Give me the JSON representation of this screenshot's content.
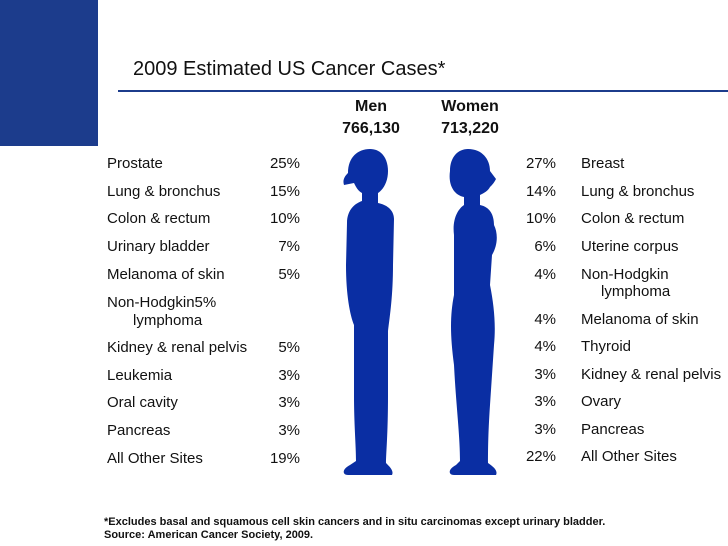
{
  "title": "2009 Estimated US Cancer Cases*",
  "colors": {
    "accent": "#1c3c8c",
    "figure": "#0a2ea3"
  },
  "men": {
    "label": "Men",
    "total": "766,130",
    "rows": [
      {
        "site": "Prostate",
        "pct": "25%"
      },
      {
        "site": "Lung & bronchus",
        "pct": "15%"
      },
      {
        "site": "Colon & rectum",
        "pct": "10%"
      },
      {
        "site": "Urinary bladder",
        "pct": "7%"
      },
      {
        "site": "Melanoma of skin",
        "pct": "5%"
      },
      {
        "site": "Non-Hodgkin5%",
        "site_line2": "lymphoma"
      },
      {
        "site": "Kidney & renal pelvis",
        "pct": "5%"
      },
      {
        "site": "Leukemia",
        "pct": "3%"
      },
      {
        "site": "Oral cavity",
        "pct": "3%"
      },
      {
        "site": "Pancreas",
        "pct": "3%"
      },
      {
        "site": "All Other Sites",
        "pct": "19%"
      }
    ]
  },
  "women": {
    "label": "Women",
    "total": "713,220",
    "rows": [
      {
        "pct": "27%",
        "site": "Breast"
      },
      {
        "pct": "14%",
        "site": "Lung & bronchus"
      },
      {
        "pct": "10%",
        "site": "Colon & rectum"
      },
      {
        "pct": "6%",
        "site": "Uterine corpus"
      },
      {
        "pct": "4%",
        "site": "Non-Hodgkin",
        "site_line2": "lymphoma"
      },
      {
        "pct": "4%",
        "site": "Melanoma of skin"
      },
      {
        "pct": "4%",
        "site": "Thyroid"
      },
      {
        "pct": "3%",
        "site": "Kidney & renal pelvis"
      },
      {
        "pct": "3%",
        "site": "Ovary"
      },
      {
        "pct": "3%",
        "site": "Pancreas"
      },
      {
        "pct": "22%",
        "site": "All Other Sites"
      }
    ]
  },
  "footnote": {
    "line1": "*Excludes basal and squamous cell skin cancers and in situ carcinomas except urinary bladder.",
    "line2": "Source: American Cancer Society, 2009."
  }
}
